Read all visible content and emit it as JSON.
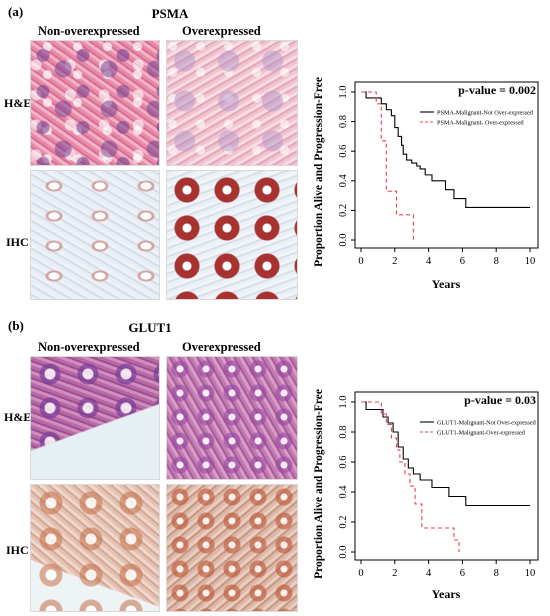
{
  "panel_a": {
    "label": "(a)",
    "marker": "PSMA",
    "col_left": "Non-overexpressed",
    "col_right": "Overexpressed",
    "row_top": "H&E",
    "row_bottom": "IHC"
  },
  "panel_b": {
    "label": "(b)",
    "marker": "GLUT1",
    "col_left": "Non-overexpressed",
    "col_right": "Overexpressed",
    "row_top": "H&E",
    "row_bottom": "IHC"
  },
  "chart_data": [
    {
      "type": "line",
      "ylabel": "Proportion Alive and Progression-Free",
      "xlabel": "Years",
      "annotation": "p-value = 0.002",
      "xlim": [
        0,
        10
      ],
      "ylim": [
        0,
        1.0
      ],
      "xticks": [
        "0",
        "2",
        "4",
        "6",
        "8",
        "10"
      ],
      "yticks": [
        "0.0",
        "0.2",
        "0.4",
        "0.6",
        "0.8",
        "1.0"
      ],
      "legend_position": "top-right",
      "series": [
        {
          "name": "PSMA-Malignant-Not Over-expressed",
          "color": "#000000",
          "style": "solid",
          "x": [
            0,
            0.3,
            0.8,
            1.2,
            1.5,
            1.8,
            2.0,
            2.2,
            2.4,
            2.5,
            2.7,
            3.0,
            3.3,
            3.5,
            3.8,
            4.2,
            5.0,
            5.5,
            6.2,
            10
          ],
          "y": [
            1.0,
            0.96,
            0.96,
            0.92,
            0.88,
            0.84,
            0.76,
            0.7,
            0.64,
            0.58,
            0.54,
            0.52,
            0.5,
            0.48,
            0.44,
            0.4,
            0.34,
            0.28,
            0.22,
            0.22
          ]
        },
        {
          "name": "PSMA-Malignant- Over-expressed",
          "color": "#e8414e",
          "style": "dashed",
          "x": [
            0,
            0.9,
            1.2,
            1.5,
            2.1,
            3.1
          ],
          "y": [
            1.0,
            0.92,
            0.67,
            0.33,
            0.17,
            0.0
          ]
        }
      ]
    },
    {
      "type": "line",
      "ylabel": "Proportion Alive and Progression-Free",
      "xlabel": "Years",
      "annotation": "p-value = 0.03",
      "xlim": [
        0,
        10
      ],
      "ylim": [
        0,
        1.0
      ],
      "xticks": [
        "0",
        "2",
        "4",
        "6",
        "8",
        "10"
      ],
      "yticks": [
        "0.0",
        "0.2",
        "0.4",
        "0.6",
        "0.8",
        "1.0"
      ],
      "legend_position": "top-right",
      "series": [
        {
          "name": "GLUT1-Malignant-Not Over-expressed",
          "color": "#000000",
          "style": "solid",
          "x": [
            0,
            0.3,
            1.3,
            1.6,
            1.9,
            2.2,
            2.5,
            2.8,
            3.1,
            3.5,
            4.2,
            5.2,
            6.2,
            10
          ],
          "y": [
            1.0,
            0.95,
            0.9,
            0.86,
            0.8,
            0.7,
            0.62,
            0.56,
            0.52,
            0.48,
            0.43,
            0.37,
            0.31,
            0.31
          ]
        },
        {
          "name": "GLUT1-Malignant-Over-expressed",
          "color": "#e8414e",
          "style": "dashed",
          "x": [
            0,
            1.2,
            1.5,
            1.8,
            2.1,
            2.3,
            2.6,
            2.9,
            3.2,
            3.6,
            4.5,
            5.5,
            5.8
          ],
          "y": [
            1.0,
            0.92,
            0.85,
            0.76,
            0.68,
            0.6,
            0.52,
            0.44,
            0.32,
            0.16,
            0.16,
            0.08,
            0.0
          ]
        }
      ]
    }
  ]
}
